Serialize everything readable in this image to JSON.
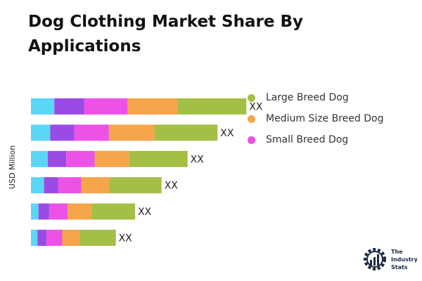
{
  "title": "Dog Clothing Market Share By Applications",
  "chart_data": {
    "type": "bar",
    "orientation": "horizontal",
    "stacked": true,
    "ylabel": "USD Million",
    "bar_labels": [
      "XX",
      "XX",
      "XX",
      "XX",
      "XX",
      "XX"
    ],
    "legend_position": "right",
    "legend": [
      {
        "name": "Large Breed Dog",
        "color": "#a4bf46"
      },
      {
        "name": "Medium Size Breed Dog",
        "color": "#f6a54a"
      },
      {
        "name": "Small Breed Dog",
        "color": "#ec52e5"
      }
    ],
    "segment_colors": [
      "#5ad6f6",
      "#9a4be5",
      "#ec52e5",
      "#f6a54a",
      "#a4bf46"
    ],
    "bars": [
      [
        10.5,
        13.5,
        19.5,
        22.5,
        31
      ],
      [
        8.7,
        10.8,
        15.6,
        20.6,
        28.3
      ],
      [
        7.6,
        8.3,
        12.8,
        15.5,
        26.3
      ],
      [
        5.9,
        6.3,
        10.5,
        12.6,
        23.5
      ],
      [
        3.4,
        4.8,
        8.3,
        10.7,
        19.7
      ],
      [
        2.9,
        4.1,
        7.1,
        7.9,
        16.2
      ]
    ],
    "xlim": [
      0,
      95
    ],
    "grid": false
  },
  "logo": {
    "text": "The\nIndustry\nStats",
    "icon": "gear-chart-logo-icon"
  }
}
